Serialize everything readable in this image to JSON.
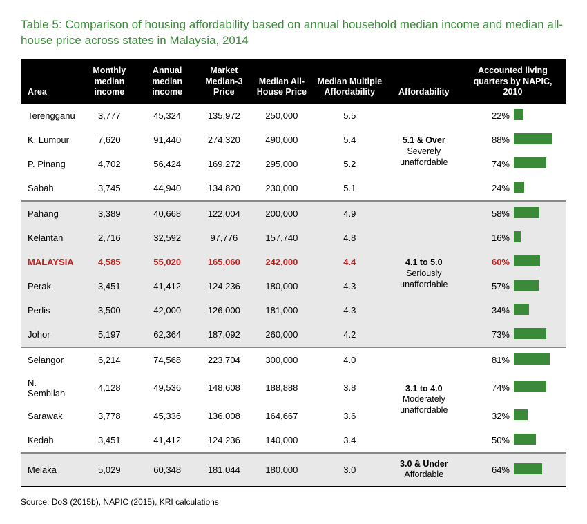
{
  "title": "Table 5: Comparison of housing affordability based on annual household median income and median all-house price across states in Malaysia, 2014",
  "columns": [
    "Area",
    "Monthly median income",
    "Annual median income",
    "Market Median-3 Price",
    "Median All-House Price",
    "Median Multiple Affordability",
    "Affordability",
    "Accounted living quarters by NAPIC, 2010"
  ],
  "groups": [
    {
      "shade": false,
      "aff_main": "5.1 & Over",
      "aff_sub": "Severely unaffordable",
      "rows": [
        {
          "area": "Terengganu",
          "monthly": "3,777",
          "annual": "45,324",
          "m3": "135,972",
          "price": "250,000",
          "mult": "5.5",
          "pct": "22%",
          "bar": 22,
          "hl": false
        },
        {
          "area": "K. Lumpur",
          "monthly": "7,620",
          "annual": "91,440",
          "m3": "274,320",
          "price": "490,000",
          "mult": "5.4",
          "pct": "88%",
          "bar": 88,
          "hl": false
        },
        {
          "area": "P. Pinang",
          "monthly": "4,702",
          "annual": "56,424",
          "m3": "169,272",
          "price": "295,000",
          "mult": "5.2",
          "pct": "74%",
          "bar": 74,
          "hl": false
        },
        {
          "area": "Sabah",
          "monthly": "3,745",
          "annual": "44,940",
          "m3": "134,820",
          "price": "230,000",
          "mult": "5.1",
          "pct": "24%",
          "bar": 24,
          "hl": false
        }
      ]
    },
    {
      "shade": true,
      "aff_main": "4.1 to 5.0",
      "aff_sub": "Seriously unaffordable",
      "rows": [
        {
          "area": "Pahang",
          "monthly": "3,389",
          "annual": "40,668",
          "m3": "122,004",
          "price": "200,000",
          "mult": "4.9",
          "pct": "58%",
          "bar": 58,
          "hl": false
        },
        {
          "area": "Kelantan",
          "monthly": "2,716",
          "annual": "32,592",
          "m3": "97,776",
          "price": "157,740",
          "mult": "4.8",
          "pct": "16%",
          "bar": 16,
          "hl": false
        },
        {
          "area": "MALAYSIA",
          "monthly": "4,585",
          "annual": "55,020",
          "m3": "165,060",
          "price": "242,000",
          "mult": "4.4",
          "pct": "60%",
          "bar": 60,
          "hl": true
        },
        {
          "area": "Perak",
          "monthly": "3,451",
          "annual": "41,412",
          "m3": "124,236",
          "price": "180,000",
          "mult": "4.3",
          "pct": "57%",
          "bar": 57,
          "hl": false
        },
        {
          "area": "Perlis",
          "monthly": "3,500",
          "annual": "42,000",
          "m3": "126,000",
          "price": "181,000",
          "mult": "4.3",
          "pct": "34%",
          "bar": 34,
          "hl": false
        },
        {
          "area": "Johor",
          "monthly": "5,197",
          "annual": "62,364",
          "m3": "187,092",
          "price": "260,000",
          "mult": "4.2",
          "pct": "73%",
          "bar": 73,
          "hl": false
        }
      ]
    },
    {
      "shade": false,
      "aff_main": "3.1 to 4.0",
      "aff_sub": "Moderately unaffordable",
      "rows": [
        {
          "area": "Selangor",
          "monthly": "6,214",
          "annual": "74,568",
          "m3": "223,704",
          "price": "300,000",
          "mult": "4.0",
          "pct": "81%",
          "bar": 81,
          "hl": false
        },
        {
          "area": "N. Sembilan",
          "monthly": "4,128",
          "annual": "49,536",
          "m3": "148,608",
          "price": "188,888",
          "mult": "3.8",
          "pct": "74%",
          "bar": 74,
          "hl": false
        },
        {
          "area": "Sarawak",
          "monthly": "3,778",
          "annual": "45,336",
          "m3": "136,008",
          "price": "164,667",
          "mult": "3.6",
          "pct": "32%",
          "bar": 32,
          "hl": false
        },
        {
          "area": "Kedah",
          "monthly": "3,451",
          "annual": "41,412",
          "m3": "124,236",
          "price": "140,000",
          "mult": "3.4",
          "pct": "50%",
          "bar": 50,
          "hl": false
        }
      ]
    },
    {
      "shade": true,
      "aff_main": "3.0 & Under",
      "aff_sub": "Affordable",
      "rows": [
        {
          "area": "Melaka",
          "monthly": "5,029",
          "annual": "60,348",
          "m3": "181,044",
          "price": "180,000",
          "mult": "3.0",
          "pct": "64%",
          "bar": 64,
          "hl": false
        }
      ]
    }
  ],
  "bar_color": "#3a8a3a",
  "bar_max_width": 64,
  "source": "Source: DoS (2015b), NAPIC (2015), KRI calculations"
}
